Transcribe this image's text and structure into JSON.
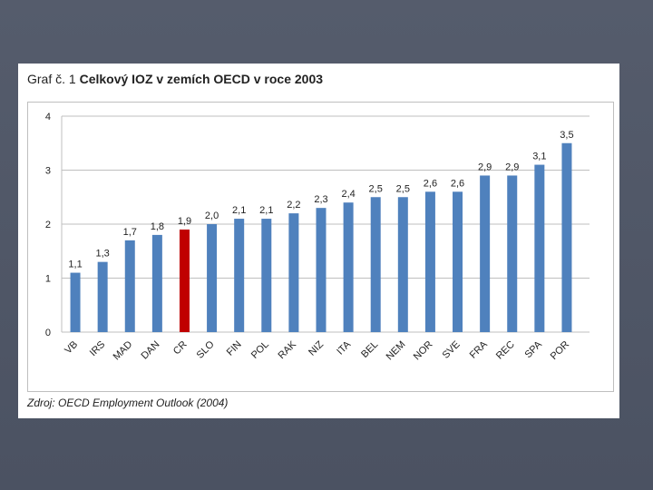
{
  "chart_data": {
    "type": "bar",
    "title_prefix": "Graf č. 1",
    "title": "Celkový IOZ v zemích OECD v roce 2003",
    "categories": [
      "VB",
      "IRS",
      "MAD",
      "DAN",
      "CR",
      "SLO",
      "FIN",
      "POL",
      "RAK",
      "NIZ",
      "ITA",
      "BEL",
      "NEM",
      "NOR",
      "SVE",
      "FRA",
      "REC",
      "SPA",
      "POR"
    ],
    "values": [
      1.1,
      1.3,
      1.7,
      1.8,
      1.9,
      2.0,
      2.1,
      2.1,
      2.2,
      2.3,
      2.4,
      2.5,
      2.5,
      2.6,
      2.6,
      2.9,
      2.9,
      3.1,
      3.5
    ],
    "data_labels": [
      "1,1",
      "1,3",
      "1,7",
      "1,8",
      "1,9",
      "2,0",
      "2,1",
      "2,1",
      "2,2",
      "2,3",
      "2,4",
      "2,5",
      "2,5",
      "2,6",
      "2,6",
      "2,9",
      "2,9",
      "3,1",
      "3,5"
    ],
    "ylim": [
      0,
      4
    ],
    "yticks": [
      "0",
      "1",
      "2",
      "3",
      "4"
    ],
    "highlight_category": "CR",
    "colors": {
      "bar": "#4f81bd",
      "highlight": "#c00000",
      "grid": "#bfbfbf"
    },
    "grid": true,
    "legend": "none",
    "source": "Zdroj: OECD Employment Outlook (2004)"
  }
}
